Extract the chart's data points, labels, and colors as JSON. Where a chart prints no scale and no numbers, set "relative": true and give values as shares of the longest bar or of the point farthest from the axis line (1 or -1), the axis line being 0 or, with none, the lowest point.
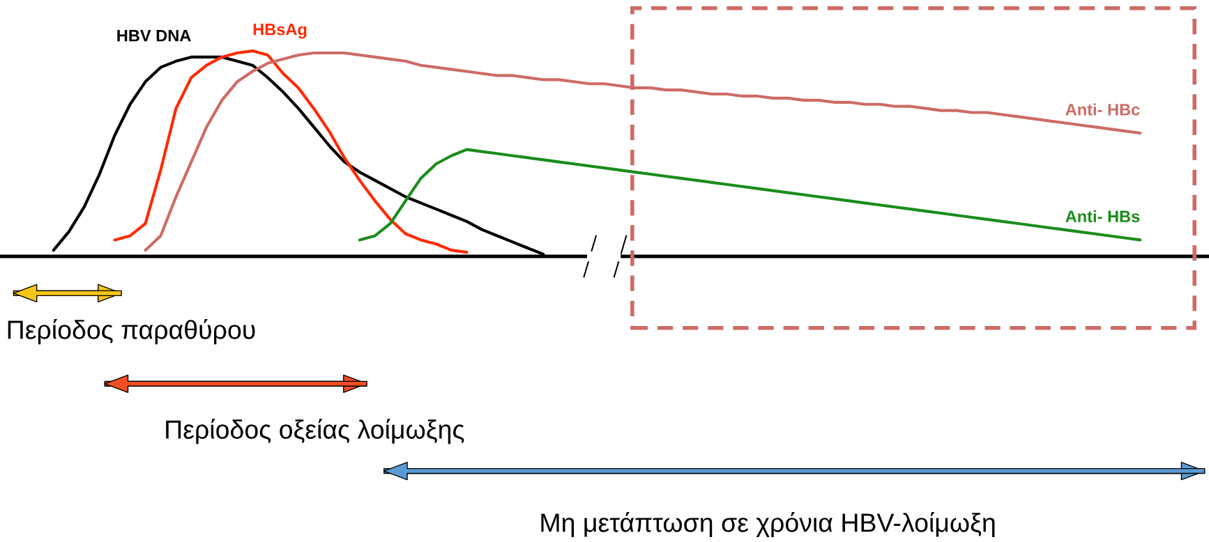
{
  "chart_data": {
    "type": "line",
    "relative": true,
    "categories": [
      null,
      null,
      null,
      null,
      null,
      null,
      null,
      null,
      null,
      null,
      null,
      null,
      null,
      null,
      null,
      null,
      null,
      null,
      null,
      null,
      null,
      null,
      null,
      null,
      null,
      null,
      null,
      null,
      null,
      null,
      null,
      null,
      null,
      null,
      null,
      null,
      null,
      null,
      null,
      null,
      null,
      null,
      null,
      null,
      null,
      null,
      null,
      null,
      null,
      null,
      null,
      null,
      null,
      null,
      null,
      null,
      null,
      null,
      null,
      null,
      null,
      null,
      null,
      null,
      null,
      null,
      null,
      null,
      null,
      null,
      null,
      null,
      null,
      null,
      null,
      null,
      null,
      null,
      null
    ],
    "series": [
      {
        "name": "HBV DNA",
        "color": "#000000",
        "values": [
          null,
          null,
          null,
          0.03,
          0.12,
          0.24,
          0.4,
          0.59,
          0.74,
          0.85,
          0.92,
          0.95,
          0.97,
          0.97,
          0.97,
          0.95,
          0.93,
          0.87,
          0.8,
          0.72,
          0.63,
          0.54,
          0.46,
          0.41,
          0.37,
          0.33,
          0.29,
          0.26,
          0.23,
          0.2,
          0.17,
          0.13,
          0.1,
          0.07,
          0.04,
          0.01,
          null,
          null,
          null,
          null,
          null,
          null,
          null,
          null,
          null,
          null,
          null,
          null,
          null,
          null,
          null,
          null,
          null,
          null,
          null,
          null,
          null,
          null,
          null,
          null,
          null,
          null,
          null,
          null,
          null,
          null,
          null,
          null,
          null,
          null,
          null,
          null,
          null,
          null,
          null,
          null,
          null,
          null,
          null
        ]
      },
      {
        "name": "HBsAg",
        "color": "#ff2a00",
        "values": [
          null,
          null,
          null,
          null,
          null,
          null,
          null,
          0.08,
          0.1,
          0.16,
          0.42,
          0.72,
          0.87,
          0.93,
          0.97,
          0.99,
          1,
          0.98,
          0.89,
          0.82,
          0.72,
          0.61,
          0.48,
          0.37,
          0.27,
          0.18,
          0.11,
          0.08,
          0.06,
          0.03,
          0.02,
          null,
          null,
          null,
          null,
          null,
          null,
          null,
          null,
          null,
          null,
          null,
          null,
          null,
          null,
          null,
          null,
          null,
          null,
          null,
          null,
          null,
          null,
          null,
          null,
          null,
          null,
          null,
          null,
          null,
          null,
          null,
          null,
          null,
          null,
          null,
          null,
          null,
          null,
          null,
          null,
          null,
          null,
          null,
          null,
          null,
          null,
          null,
          null
        ]
      },
      {
        "name": "Anti- HBc",
        "color": "#cd6b66",
        "values": [
          null,
          null,
          null,
          null,
          null,
          null,
          null,
          null,
          null,
          0.03,
          0.1,
          0.29,
          0.46,
          0.63,
          0.76,
          0.85,
          0.9,
          0.94,
          0.96,
          0.98,
          0.99,
          0.99,
          0.99,
          0.98,
          0.97,
          0.96,
          0.95,
          0.93,
          0.92,
          0.91,
          0.9,
          0.89,
          0.88,
          0.88,
          0.87,
          0.86,
          0.86,
          0.85,
          0.84,
          0.84,
          0.83,
          0.82,
          0.82,
          0.81,
          0.81,
          0.8,
          0.79,
          0.79,
          0.78,
          0.78,
          0.77,
          0.77,
          0.76,
          0.76,
          0.75,
          0.75,
          0.74,
          0.74,
          0.73,
          0.73,
          0.72,
          0.71,
          0.71,
          0.7,
          0.7,
          0.69,
          0.68,
          0.67,
          0.66,
          0.65,
          0.64,
          0.63,
          0.62,
          0.61,
          0.6,
          null,
          null,
          null,
          null
        ]
      },
      {
        "name": "Anti- HBs",
        "color": "#1a8c1a",
        "values": [
          null,
          null,
          null,
          null,
          null,
          null,
          null,
          null,
          null,
          null,
          null,
          null,
          null,
          null,
          null,
          null,
          null,
          null,
          null,
          null,
          null,
          null,
          null,
          0.08,
          0.1,
          0.16,
          0.27,
          0.38,
          0.45,
          0.49,
          0.52,
          0.51,
          0.5,
          0.49,
          0.48,
          0.47,
          0.46,
          0.45,
          0.44,
          0.43,
          0.42,
          0.41,
          0.4,
          0.39,
          0.38,
          0.37,
          0.36,
          0.35,
          0.34,
          0.33,
          0.32,
          0.31,
          0.3,
          0.29,
          0.28,
          0.27,
          0.26,
          0.25,
          0.24,
          0.23,
          0.22,
          0.21,
          0.2,
          0.19,
          0.18,
          0.17,
          0.16,
          0.15,
          0.14,
          0.13,
          0.12,
          0.11,
          0.1,
          0.09,
          0.08,
          null,
          null,
          null,
          null
        ]
      }
    ],
    "annotations": [
      "Περίοδος παραθύρου",
      "Περίοδος οξείας λοίμωξης",
      "Μη μετάπτωση σε χρόνια HBV-λοίμωξη"
    ]
  }
}
